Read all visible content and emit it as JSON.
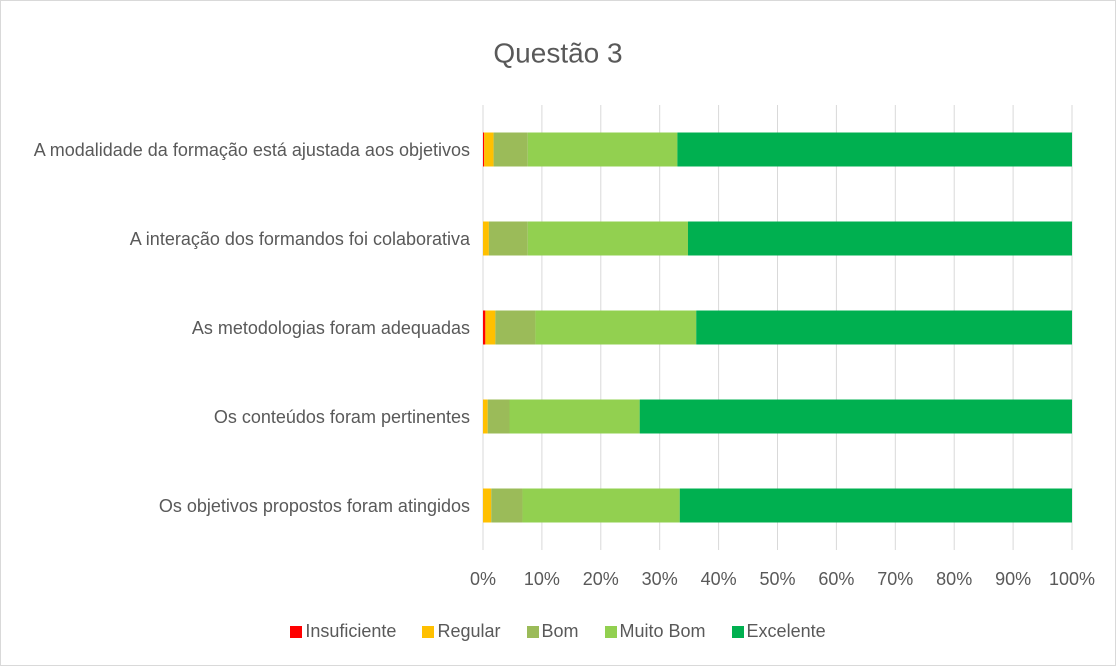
{
  "chart_data": {
    "type": "stacked_barh",
    "title": "Questão 3",
    "categories": [
      "A modalidade da formação está ajustada aos objetivos",
      "A interação dos formandos foi colaborativa",
      "As metodologias foram adequadas",
      "Os conteúdos foram pertinentes",
      "Os objetivos propostos foram atingidos"
    ],
    "series": [
      {
        "name": "Insuficiente",
        "color": "#ff0000",
        "values": [
          0.2,
          0,
          0.4,
          0,
          0
        ]
      },
      {
        "name": "Regular",
        "color": "#ffc000",
        "values": [
          1.6,
          1.0,
          1.7,
          0.8,
          1.4
        ]
      },
      {
        "name": "Bom",
        "color": "#9bbb59",
        "values": [
          5.8,
          6.6,
          6.8,
          3.7,
          5.3
        ]
      },
      {
        "name": "Muito Bom",
        "color": "#92d050",
        "values": [
          25.4,
          27.2,
          27.3,
          22.1,
          26.7
        ]
      },
      {
        "name": "Excelente",
        "color": "#00b050",
        "values": [
          67.0,
          65.2,
          63.8,
          73.4,
          66.6
        ]
      }
    ],
    "xlim": [
      0,
      100
    ],
    "xticks": [
      {
        "value": 0,
        "label": "0%"
      },
      {
        "value": 10,
        "label": "10%"
      },
      {
        "value": 20,
        "label": "20%"
      },
      {
        "value": 30,
        "label": "30%"
      },
      {
        "value": 40,
        "label": "40%"
      },
      {
        "value": 50,
        "label": "50%"
      },
      {
        "value": 60,
        "label": "60%"
      },
      {
        "value": 70,
        "label": "70%"
      },
      {
        "value": 80,
        "label": "80%"
      },
      {
        "value": 90,
        "label": "90%"
      },
      {
        "value": 100,
        "label": "100%"
      }
    ],
    "grid": true,
    "legend": "bottom"
  }
}
